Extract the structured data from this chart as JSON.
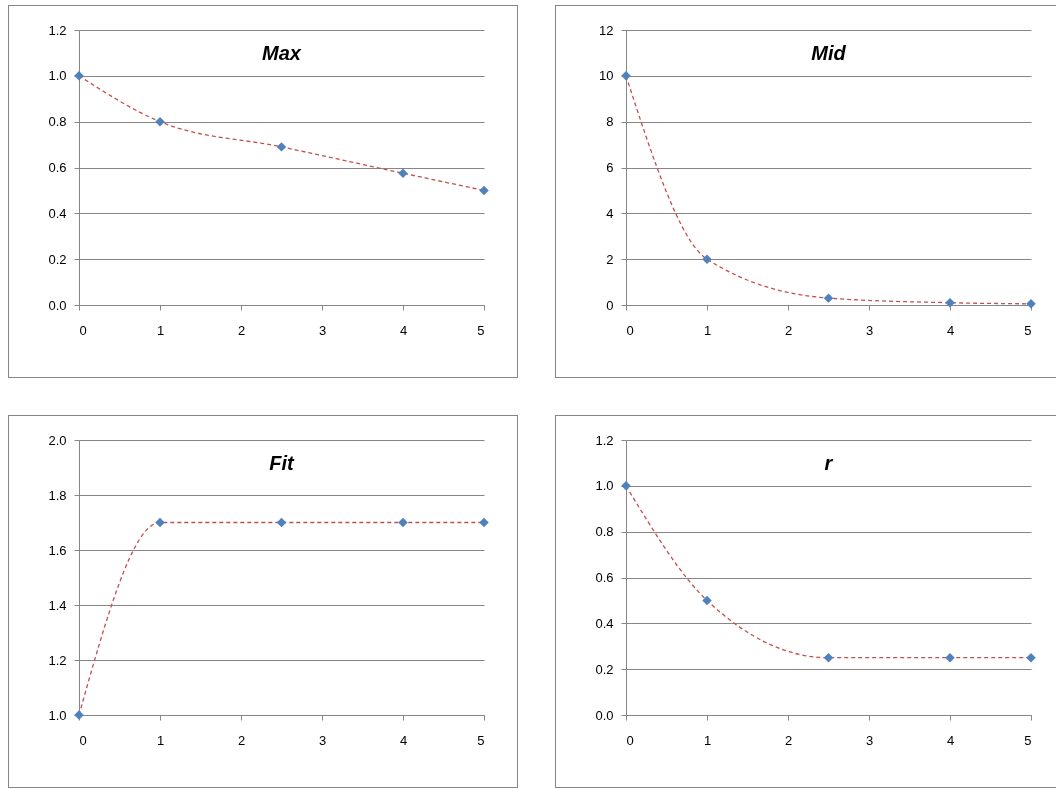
{
  "chart_data": [
    {
      "type": "line",
      "title": "Max",
      "x": [
        0,
        1,
        2.5,
        4,
        5
      ],
      "xlim": [
        0,
        5
      ],
      "xticks": [
        0,
        1,
        2,
        3,
        4,
        5
      ],
      "ylim": [
        0,
        1.2
      ],
      "yticks": [
        {
          "value": 0,
          "label": "0.0"
        },
        0.2,
        0.4,
        0.6,
        0.8,
        {
          "value": 1,
          "label": "1.0"
        },
        1.2
      ],
      "grid": "y",
      "line_style": "dashed",
      "series": [
        {
          "type": "line",
          "color": "#c0504d",
          "marker": "none",
          "values": [
            1.0,
            0.8,
            0.69,
            0.575,
            0.5
          ]
        },
        {
          "type": "scatter",
          "color": "#4f81bd",
          "marker": "diamond",
          "values": [
            1.0,
            0.8,
            0.69,
            0.575,
            0.5
          ]
        }
      ]
    },
    {
      "type": "line",
      "title": "Mid",
      "x": [
        0,
        1,
        2.5,
        4,
        5
      ],
      "xlim": [
        0,
        5
      ],
      "xticks": [
        0,
        1,
        2,
        3,
        4,
        5
      ],
      "ylim": [
        0,
        12
      ],
      "yticks": [
        0,
        2,
        4,
        6,
        8,
        10,
        12
      ],
      "grid": "y",
      "line_style": "dashed",
      "series": [
        {
          "type": "line",
          "color": "#c0504d",
          "marker": "none",
          "values": [
            10,
            2,
            0.3,
            0.1,
            0.05
          ]
        },
        {
          "type": "scatter",
          "color": "#4f81bd",
          "marker": "diamond",
          "values": [
            10,
            2,
            0.3,
            0.1,
            0.05
          ]
        }
      ]
    },
    {
      "type": "line",
      "title": "Fit",
      "x": [
        0,
        1,
        2.5,
        4,
        5
      ],
      "xlim": [
        0,
        5
      ],
      "xticks": [
        0,
        1,
        2,
        3,
        4,
        5
      ],
      "ylim": [
        1,
        2
      ],
      "yticks": [
        {
          "value": 1,
          "label": "1.0"
        },
        1.2,
        1.4,
        1.6,
        1.8,
        {
          "value": 2,
          "label": "2.0"
        }
      ],
      "grid": "y",
      "line_style": "dashed",
      "series": [
        {
          "type": "line",
          "color": "#c0504d",
          "marker": "none",
          "values": [
            1.0,
            1.7,
            1.7,
            1.7,
            1.7
          ]
        },
        {
          "type": "scatter",
          "color": "#4f81bd",
          "marker": "diamond",
          "values": [
            1.0,
            1.7,
            1.7,
            1.7,
            1.7
          ]
        }
      ]
    },
    {
      "type": "line",
      "title": "r",
      "x": [
        0,
        1,
        2.5,
        4,
        5
      ],
      "xlim": [
        0,
        5
      ],
      "xticks": [
        0,
        1,
        2,
        3,
        4,
        5
      ],
      "ylim": [
        0,
        1.2
      ],
      "yticks": [
        {
          "value": 0,
          "label": "0.0"
        },
        0.2,
        0.4,
        0.6,
        0.8,
        {
          "value": 1,
          "label": "1.0"
        },
        1.2
      ],
      "grid": "y",
      "line_style": "dashed",
      "series": [
        {
          "type": "line",
          "color": "#c0504d",
          "marker": "none",
          "values": [
            1.0,
            0.5,
            0.25,
            0.25,
            0.25
          ]
        },
        {
          "type": "scatter",
          "color": "#4f81bd",
          "marker": "diamond",
          "values": [
            1.0,
            0.5,
            0.25,
            0.25,
            0.25
          ]
        }
      ]
    }
  ]
}
